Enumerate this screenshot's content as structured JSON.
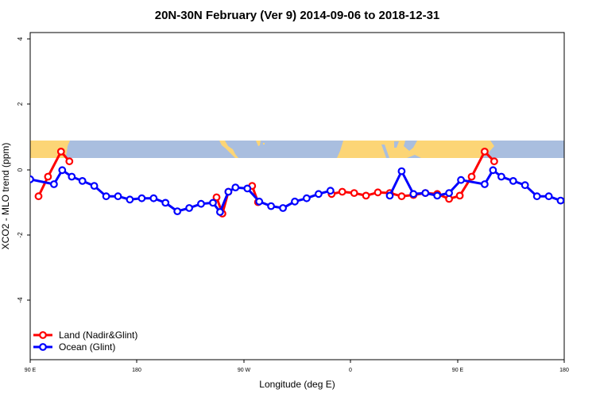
{
  "chart_data": {
    "type": "line",
    "title": "20N-30N February (Ver 9)   2014-09-06 to 2018-12-31",
    "xlabel": "Longitude (deg E)",
    "ylabel": "XCO2 - MLO trend (ppm)",
    "xlim": [
      90,
      540
    ],
    "ylim": [
      -5.7,
      4.3
    ],
    "x_ticks": [
      {
        "value": 90,
        "label": "90 E"
      },
      {
        "value": 180,
        "label": "180"
      },
      {
        "value": 270,
        "label": "90 W"
      },
      {
        "value": 360,
        "label": "0"
      },
      {
        "value": 450,
        "label": "90 E"
      },
      {
        "value": 540,
        "label": "180"
      }
    ],
    "y_ticks": [
      {
        "value": 4,
        "label": "4"
      },
      {
        "value": 2,
        "label": "2"
      },
      {
        "value": 0,
        "label": "0"
      },
      {
        "value": -2,
        "label": "-2"
      },
      {
        "value": -4,
        "label": "-4"
      }
    ],
    "legend": {
      "position": "bottom-left"
    },
    "colors": {
      "land": "#ff0000",
      "ocean": "#0000ff",
      "map_ocean": "#a9bedf",
      "map_land": "#fcd576"
    },
    "series": [
      {
        "name": "Land (Nadir&Glint)",
        "color": "#ff0000",
        "segments": [
          [
            [
              97,
              -0.82
            ],
            [
              105,
              -0.22
            ],
            [
              116,
              0.55
            ],
            [
              123,
              0.25
            ]
          ],
          [
            [
              247,
              -0.85
            ],
            [
              252,
              -1.35
            ],
            [
              257,
              -0.68
            ]
          ],
          [
            [
              277,
              -0.5
            ],
            [
              282,
              -1.0
            ]
          ],
          [
            [
              344,
              -0.75
            ],
            [
              353,
              -0.68
            ],
            [
              363,
              -0.72
            ],
            [
              373,
              -0.8
            ],
            [
              383,
              -0.7
            ],
            [
              393,
              -0.72
            ],
            [
              403,
              -0.82
            ],
            [
              413,
              -0.78
            ],
            [
              423,
              -0.72
            ],
            [
              433,
              -0.75
            ],
            [
              443,
              -0.9
            ],
            [
              452,
              -0.8
            ],
            [
              462,
              -0.22
            ],
            [
              473,
              0.55
            ],
            [
              481,
              0.25
            ]
          ]
        ]
      },
      {
        "name": "Ocean (Glint)",
        "color": "#0000ff",
        "segments": [
          [
            [
              90,
              -0.3
            ],
            [
              110,
              -0.45
            ],
            [
              117,
              -0.02
            ],
            [
              125,
              -0.22
            ],
            [
              134,
              -0.35
            ],
            [
              144,
              -0.5
            ],
            [
              154,
              -0.82
            ],
            [
              164,
              -0.82
            ],
            [
              174,
              -0.92
            ],
            [
              184,
              -0.88
            ],
            [
              194,
              -0.88
            ],
            [
              204,
              -1.02
            ],
            [
              214,
              -1.28
            ],
            [
              224,
              -1.18
            ],
            [
              234,
              -1.05
            ],
            [
              244,
              -1.02
            ],
            [
              250,
              -1.3
            ],
            [
              257,
              -0.68
            ],
            [
              263,
              -0.55
            ],
            [
              273,
              -0.58
            ],
            [
              283,
              -0.98
            ],
            [
              293,
              -1.12
            ],
            [
              303,
              -1.18
            ],
            [
              313,
              -0.98
            ],
            [
              323,
              -0.88
            ],
            [
              333,
              -0.75
            ],
            [
              343,
              -0.65
            ]
          ],
          [
            [
              393,
              -0.8
            ],
            [
              403,
              -0.05
            ],
            [
              413,
              -0.75
            ],
            [
              423,
              -0.72
            ],
            [
              433,
              -0.8
            ],
            [
              443,
              -0.72
            ],
            [
              453,
              -0.32
            ],
            [
              473,
              -0.45
            ],
            [
              480,
              -0.02
            ],
            [
              487,
              -0.22
            ],
            [
              497,
              -0.35
            ],
            [
              507,
              -0.48
            ],
            [
              517,
              -0.82
            ],
            [
              527,
              -0.82
            ],
            [
              537,
              -0.95
            ]
          ]
        ]
      }
    ]
  }
}
